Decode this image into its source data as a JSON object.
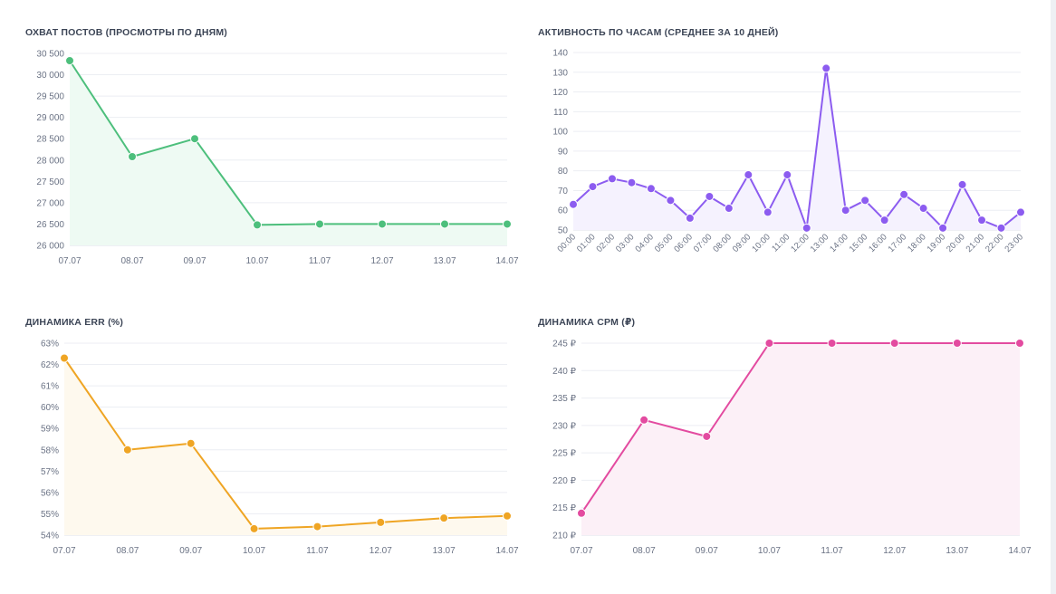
{
  "charts": [
    {
      "id": "reach",
      "title": "ОХВАТ ПОСТОВ (ПРОСМОТРЫ ПО ДНЯМ)",
      "color": "#4dbf7c",
      "fill": "#eefaf3",
      "y_ticks": [
        "26 000",
        "26 500",
        "27 000",
        "27 500",
        "28 000",
        "28 500",
        "29 000",
        "29 500",
        "30 000",
        "30 500"
      ],
      "x_ticks": [
        "07.07",
        "08.07",
        "09.07",
        "10.07",
        "11.07",
        "12.07",
        "13.07",
        "14.07"
      ]
    },
    {
      "id": "hourly",
      "title": "АКТИВНОСТЬ ПО ЧАСАМ (СРЕДНЕЕ ЗА 10 ДНЕЙ)",
      "color": "#8c5cf0",
      "fill": "#f5f2fe",
      "y_ticks": [
        "50",
        "60",
        "70",
        "80",
        "90",
        "100",
        "110",
        "120",
        "130",
        "140"
      ],
      "x_ticks": [
        "00:00",
        "01:00",
        "02:00",
        "03:00",
        "04:00",
        "05:00",
        "06:00",
        "07:00",
        "08:00",
        "09:00",
        "10:00",
        "11:00",
        "12:00",
        "13:00",
        "14:00",
        "15:00",
        "16:00",
        "17:00",
        "18:00",
        "19:00",
        "20:00",
        "21:00",
        "22:00",
        "23:00"
      ]
    },
    {
      "id": "err",
      "title": "ДИНАМИКА ERR (%)",
      "color": "#efa524",
      "fill": "#fef9ee",
      "y_ticks": [
        "54%",
        "55%",
        "56%",
        "57%",
        "58%",
        "59%",
        "60%",
        "61%",
        "62%",
        "63%"
      ],
      "x_ticks": [
        "07.07",
        "08.07",
        "09.07",
        "10.07",
        "11.07",
        "12.07",
        "13.07",
        "14.07"
      ]
    },
    {
      "id": "cpm",
      "title": "ДИНАМИКА CPM (₽)",
      "color": "#e34ba0",
      "fill": "#fcf0f7",
      "y_ticks": [
        "210 ₽",
        "215 ₽",
        "220 ₽",
        "225 ₽",
        "230 ₽",
        "235 ₽",
        "240 ₽",
        "245 ₽"
      ],
      "x_ticks": [
        "07.07",
        "08.07",
        "09.07",
        "10.07",
        "11.07",
        "12.07",
        "13.07",
        "14.07"
      ]
    }
  ],
  "chart_data": [
    {
      "type": "area",
      "title": "ОХВАТ ПОСТОВ (ПРОСМОТРЫ ПО ДНЯМ)",
      "categories": [
        "07.07",
        "08.07",
        "09.07",
        "10.07",
        "11.07",
        "12.07",
        "13.07",
        "14.07"
      ],
      "values": [
        30330,
        28080,
        28500,
        26480,
        26500,
        26500,
        26500,
        26500
      ],
      "ylim": [
        26000,
        30500
      ],
      "grid": true
    },
    {
      "type": "area",
      "title": "АКТИВНОСТЬ ПО ЧАСАМ (СРЕДНЕЕ ЗА 10 ДНЕЙ)",
      "categories": [
        "00:00",
        "01:00",
        "02:00",
        "03:00",
        "04:00",
        "05:00",
        "06:00",
        "07:00",
        "08:00",
        "09:00",
        "10:00",
        "11:00",
        "12:00",
        "13:00",
        "14:00",
        "15:00",
        "16:00",
        "17:00",
        "18:00",
        "19:00",
        "20:00",
        "21:00",
        "22:00",
        "23:00"
      ],
      "values": [
        63,
        72,
        76,
        74,
        71,
        65,
        56,
        67,
        61,
        78,
        59,
        78,
        51,
        132,
        60,
        65,
        55,
        68,
        61,
        51,
        73,
        55,
        51,
        59
      ],
      "ylim": [
        50,
        140
      ],
      "grid": true
    },
    {
      "type": "area",
      "title": "ДИНАМИКА ERR (%)",
      "categories": [
        "07.07",
        "08.07",
        "09.07",
        "10.07",
        "11.07",
        "12.07",
        "13.07",
        "14.07"
      ],
      "values": [
        62.3,
        58.0,
        58.3,
        54.3,
        54.4,
        54.6,
        54.8,
        54.9
      ],
      "ylim": [
        54,
        63
      ],
      "grid": true
    },
    {
      "type": "area",
      "title": "ДИНАМИКА CPM (₽)",
      "categories": [
        "07.07",
        "08.07",
        "09.07",
        "10.07",
        "11.07",
        "12.07",
        "13.07",
        "14.07"
      ],
      "values": [
        214,
        231,
        228,
        245,
        245,
        245,
        245,
        245
      ],
      "ylim": [
        210,
        245
      ],
      "grid": true
    }
  ]
}
